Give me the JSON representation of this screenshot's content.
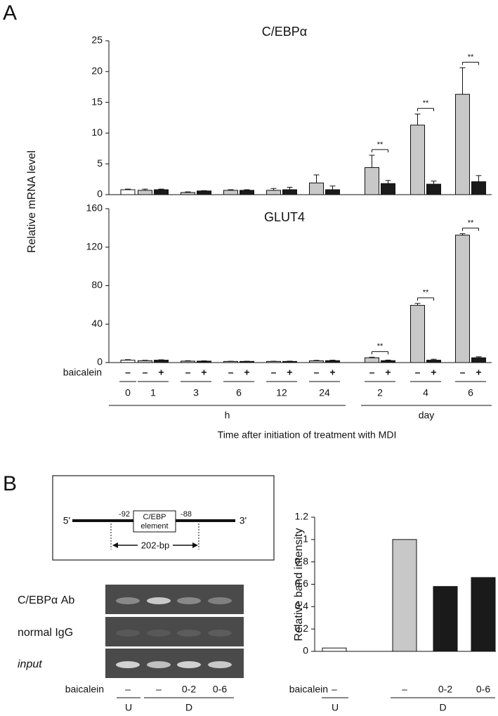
{
  "panel_a": {
    "label": "A",
    "y_label": "Relative  mRNA level"
  },
  "panel_b": {
    "label": "B",
    "diagram": {
      "five_prime": "5'",
      "three_prime": "3'",
      "left_position": "-92",
      "right_position": "-88",
      "element_line1": "C/EBP",
      "element_line2": "element",
      "length": "202-bp"
    },
    "gel": {
      "rows": [
        "C/EBPα Ab",
        "normal IgG",
        "input"
      ],
      "treatment_label": "baicalein",
      "lanes": [
        "–",
        "–",
        "0-2",
        "0-6"
      ],
      "groups": [
        "U",
        "D"
      ]
    }
  },
  "chart_data": [
    {
      "type": "bar",
      "title": "C/EBPα",
      "values": [
        0.8,
        0.7,
        0.8,
        0.35,
        0.6,
        0.7,
        0.7,
        0.7,
        0.8,
        1.9,
        0.8,
        4.4,
        1.8,
        11.3,
        1.7,
        16.3,
        2.1
      ],
      "errors": [
        0.1,
        0.2,
        0.1,
        0.1,
        0.05,
        0.1,
        0.1,
        0.3,
        0.4,
        1.3,
        0.6,
        2.0,
        0.5,
        1.8,
        0.5,
        4.3,
        1.0
      ],
      "colors": [
        "#ffffff",
        "#c8c8c8",
        "#1a1a1a",
        "#c8c8c8",
        "#1a1a1a",
        "#c8c8c8",
        "#1a1a1a",
        "#c8c8c8",
        "#1a1a1a",
        "#c8c8c8",
        "#1a1a1a",
        "#c8c8c8",
        "#1a1a1a",
        "#c8c8c8",
        "#1a1a1a",
        "#c8c8c8",
        "#1a1a1a"
      ],
      "significance": [
        null,
        null,
        null,
        null,
        null,
        null,
        "**",
        "**",
        "**"
      ],
      "ylim": [
        0,
        25
      ],
      "yticks": [
        0,
        5,
        10,
        15,
        20,
        25
      ]
    },
    {
      "type": "bar",
      "title": "GLUT4",
      "treatment_label": "baicalein",
      "categories": [
        "–",
        "–",
        "+",
        "–",
        "+",
        "–",
        "+",
        "–",
        "+",
        "–",
        "+",
        "–",
        "+",
        "–",
        "+",
        "–",
        "+"
      ],
      "time_units": [
        {
          "label": "h",
          "times": [
            "0",
            "1",
            "3",
            "6",
            "12",
            "24"
          ]
        },
        {
          "label": "day",
          "times": [
            "2",
            "4",
            "6"
          ]
        }
      ],
      "x_label": "Time after initiation of treatment with MDI",
      "values": [
        2.5,
        2,
        2.5,
        1.5,
        1.5,
        1.2,
        1.2,
        1.2,
        1.2,
        1.8,
        2,
        5,
        2,
        59.5,
        2.5,
        132.5,
        5
      ],
      "errors": [
        0.5,
        0.4,
        0.4,
        0.4,
        0.3,
        0.2,
        0.2,
        0.2,
        0.3,
        0.5,
        0.5,
        0.6,
        0.6,
        2,
        1,
        1.5,
        1
      ],
      "colors": [
        "#ffffff",
        "#c8c8c8",
        "#1a1a1a",
        "#c8c8c8",
        "#1a1a1a",
        "#c8c8c8",
        "#1a1a1a",
        "#c8c8c8",
        "#1a1a1a",
        "#c8c8c8",
        "#1a1a1a",
        "#c8c8c8",
        "#1a1a1a",
        "#c8c8c8",
        "#1a1a1a",
        "#c8c8c8",
        "#1a1a1a"
      ],
      "significance": [
        null,
        null,
        null,
        null,
        null,
        null,
        "**",
        "**",
        "**"
      ],
      "ylim": [
        0,
        160
      ],
      "yticks": [
        0,
        40,
        80,
        120,
        160
      ]
    },
    {
      "type": "bar",
      "y_label": "Relative band intensity",
      "treatment_label": "baicalein",
      "categories": [
        "–",
        "–",
        "0-2",
        "0-6"
      ],
      "groups": [
        "U",
        "D"
      ],
      "values": [
        0.03,
        1.0,
        0.58,
        0.66
      ],
      "colors": [
        "#ffffff",
        "#c8c8c8",
        "#1a1a1a",
        "#1a1a1a"
      ],
      "ylim": [
        0,
        1.2
      ],
      "yticks": [
        0,
        0.2,
        0.4,
        0.6,
        0.8,
        1,
        1.2
      ]
    }
  ]
}
